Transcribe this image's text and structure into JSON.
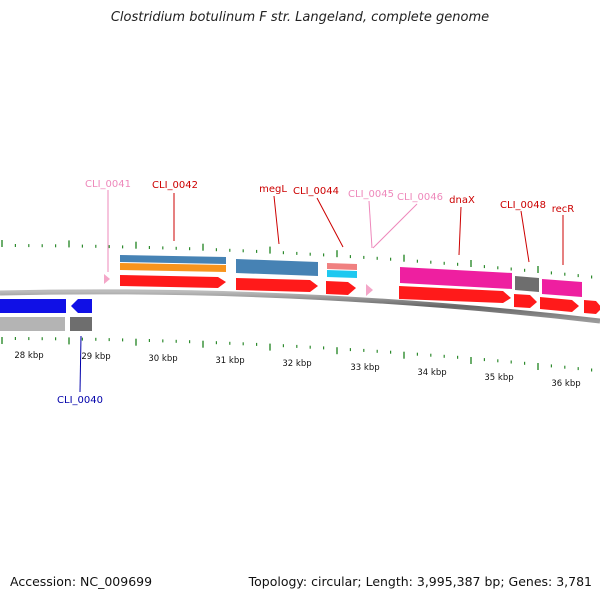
{
  "title": "Clostridium botulinum F str. Langeland, complete genome",
  "footer": {
    "accession": "Accession: NC_009699",
    "summary": "Topology: circular; Length: 3,995,387 bp; Genes: 3,781"
  },
  "colors": {
    "backbone": "#777777",
    "tick": "#2e8b2e",
    "red_label": "#cc0000",
    "pink_label": "#ee88bb",
    "blue_label": "#0000aa"
  },
  "scale_labels": [
    "28 kbp",
    "29 kbp",
    "30 kbp",
    "31 kbp",
    "32 kbp",
    "33 kbp",
    "34 kbp",
    "35 kbp",
    "36 kbp"
  ],
  "gene_labels": [
    {
      "id": "cli0041",
      "text": "CLI_0041",
      "style": "pink"
    },
    {
      "id": "cli0042",
      "text": "CLI_0042",
      "style": "red"
    },
    {
      "id": "megl",
      "text": "megL",
      "style": "red"
    },
    {
      "id": "cli0044",
      "text": "CLI_0044",
      "style": "red"
    },
    {
      "id": "cli0045",
      "text": "CLI_0045",
      "style": "pink"
    },
    {
      "id": "cli0046",
      "text": "CLI_0046",
      "style": "pink"
    },
    {
      "id": "dnax",
      "text": "dnaX",
      "style": "red"
    },
    {
      "id": "cli0048",
      "text": "CLI_0048",
      "style": "red"
    },
    {
      "id": "recr",
      "text": "recR",
      "style": "red"
    },
    {
      "id": "cli0040",
      "text": "CLI_0040",
      "style": "blue"
    }
  ]
}
